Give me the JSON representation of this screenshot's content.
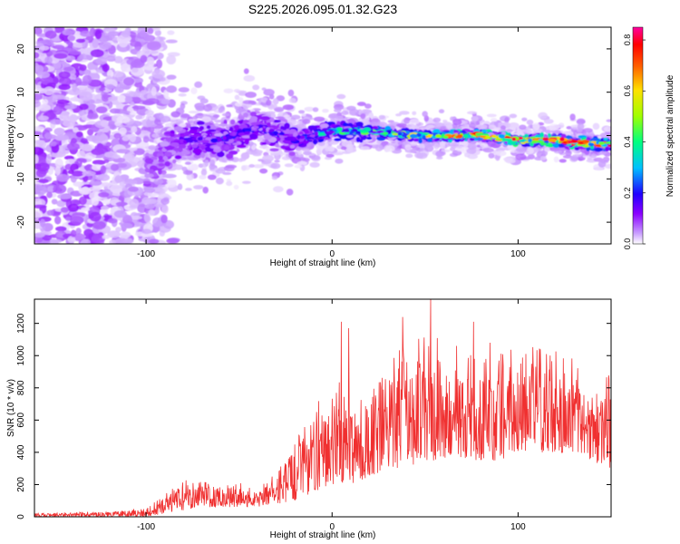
{
  "page": {
    "title": "S225.2026.095.01.32.G23"
  },
  "chart_data": [
    {
      "type": "heatmap",
      "title": "S225.2026.095.01.32.G23",
      "xlabel": "Height of straight line (km)",
      "ylabel": "Frequency (Hz)",
      "xlim": [
        -160,
        150
      ],
      "ylim": [
        -25,
        25
      ],
      "xticks": [
        -100,
        0,
        100
      ],
      "yticks": [
        -20,
        -10,
        0,
        10,
        20
      ],
      "grid": false,
      "colorbar": {
        "label": "Normalized spectral amplitude",
        "range": [
          0.0,
          0.85
        ],
        "ticks": [
          0.0,
          0.2,
          0.4,
          0.6,
          0.8
        ],
        "colormap": [
          "#ffffff",
          "#c89cff",
          "#8a00ff",
          "#2000ff",
          "#00c0ff",
          "#00ff80",
          "#a0ff00",
          "#ffe000",
          "#ff6000",
          "#ff0000",
          "#ff00a0"
        ]
      },
      "ridge": {
        "description_values": {
          "x": [
            -100,
            -90,
            -80,
            -60,
            -40,
            -20,
            0,
            20,
            40,
            60,
            80,
            100,
            120,
            140,
            150
          ],
          "center_frequency": [
            -10,
            -3,
            -1,
            -1,
            2,
            -1,
            1,
            1,
            0,
            0,
            0,
            -1,
            -1,
            -2,
            -2
          ],
          "peak_amplitude": [
            0.12,
            0.18,
            0.25,
            0.3,
            0.25,
            0.3,
            0.45,
            0.5,
            0.6,
            0.7,
            0.75,
            0.85,
            0.8,
            0.85,
            0.8
          ]
        }
      }
    },
    {
      "type": "line",
      "xlabel": "Height of straight line (km)",
      "ylabel": "SNR (10 * v/v)",
      "xlim": [
        -160,
        150
      ],
      "ylim": [
        0,
        1350
      ],
      "xticks": [
        -100,
        0,
        100
      ],
      "yticks": [
        0,
        200,
        400,
        600,
        800,
        1000,
        1200
      ],
      "grid": false,
      "color": "#f03030",
      "envelope": {
        "x": [
          -160,
          -120,
          -100,
          -90,
          -80,
          -70,
          -60,
          -50,
          -40,
          -30,
          -20,
          -10,
          0,
          10,
          20,
          30,
          40,
          50,
          60,
          70,
          80,
          90,
          100,
          110,
          120,
          130,
          140,
          150
        ],
        "typical_max": [
          20,
          30,
          50,
          120,
          200,
          230,
          170,
          200,
          150,
          250,
          420,
          600,
          700,
          780,
          800,
          900,
          1000,
          1100,
          980,
          900,
          850,
          900,
          1000,
          950,
          900,
          850,
          700,
          800
        ],
        "typical_min": [
          0,
          0,
          0,
          20,
          40,
          60,
          60,
          60,
          60,
          80,
          100,
          150,
          200,
          200,
          250,
          300,
          300,
          350,
          350,
          350,
          350,
          350,
          400,
          400,
          400,
          400,
          350,
          300
        ]
      },
      "peaks": [
        {
          "x": 5,
          "y": 1210
        },
        {
          "x": 9,
          "y": 1170
        },
        {
          "x": 38,
          "y": 1240
        },
        {
          "x": 53,
          "y": 1350
        },
        {
          "x": 76,
          "y": 1210
        },
        {
          "x": 85,
          "y": 1080
        }
      ]
    }
  ]
}
